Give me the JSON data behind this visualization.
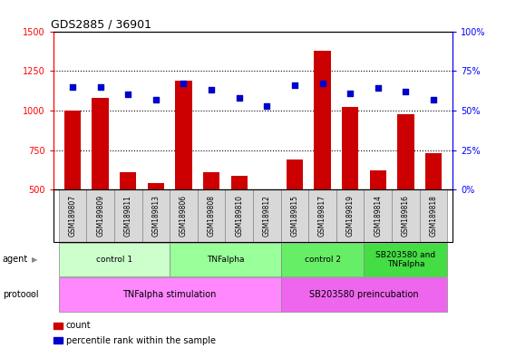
{
  "title": "GDS2885 / 36901",
  "samples": [
    "GSM189807",
    "GSM189809",
    "GSM189811",
    "GSM189813",
    "GSM189806",
    "GSM189808",
    "GSM189810",
    "GSM189812",
    "GSM189815",
    "GSM189817",
    "GSM189819",
    "GSM189814",
    "GSM189816",
    "GSM189818"
  ],
  "counts": [
    1000,
    1080,
    610,
    540,
    1190,
    610,
    590,
    490,
    690,
    1380,
    1020,
    620,
    975,
    730
  ],
  "percentiles": [
    65,
    65,
    60,
    57,
    67,
    63,
    58,
    53,
    66,
    67,
    61,
    64,
    62,
    57
  ],
  "ylim_left": [
    500,
    1500
  ],
  "ylim_right": [
    0,
    100
  ],
  "yticks_left": [
    500,
    750,
    1000,
    1250,
    1500
  ],
  "yticks_right": [
    0,
    25,
    50,
    75,
    100
  ],
  "bar_color": "#cc0000",
  "dot_color": "#0000cc",
  "agent_groups": [
    {
      "label": "control 1",
      "start": 0,
      "end": 4,
      "color": "#ccffcc"
    },
    {
      "label": "TNFalpha",
      "start": 4,
      "end": 8,
      "color": "#99ff99"
    },
    {
      "label": "control 2",
      "start": 8,
      "end": 11,
      "color": "#66ee66"
    },
    {
      "label": "SB203580 and\nTNFalpha",
      "start": 11,
      "end": 14,
      "color": "#44dd44"
    }
  ],
  "protocol_groups": [
    {
      "label": "TNFalpha stimulation",
      "start": 0,
      "end": 8,
      "color": "#ff88ff"
    },
    {
      "label": "SB203580 preincubation",
      "start": 8,
      "end": 14,
      "color": "#ee66ee"
    }
  ],
  "legend_items": [
    {
      "color": "#cc0000",
      "label": "count"
    },
    {
      "color": "#0000cc",
      "label": "percentile rank within the sample"
    }
  ],
  "sample_box_color": "#d8d8d8",
  "bar_bottom": 0
}
